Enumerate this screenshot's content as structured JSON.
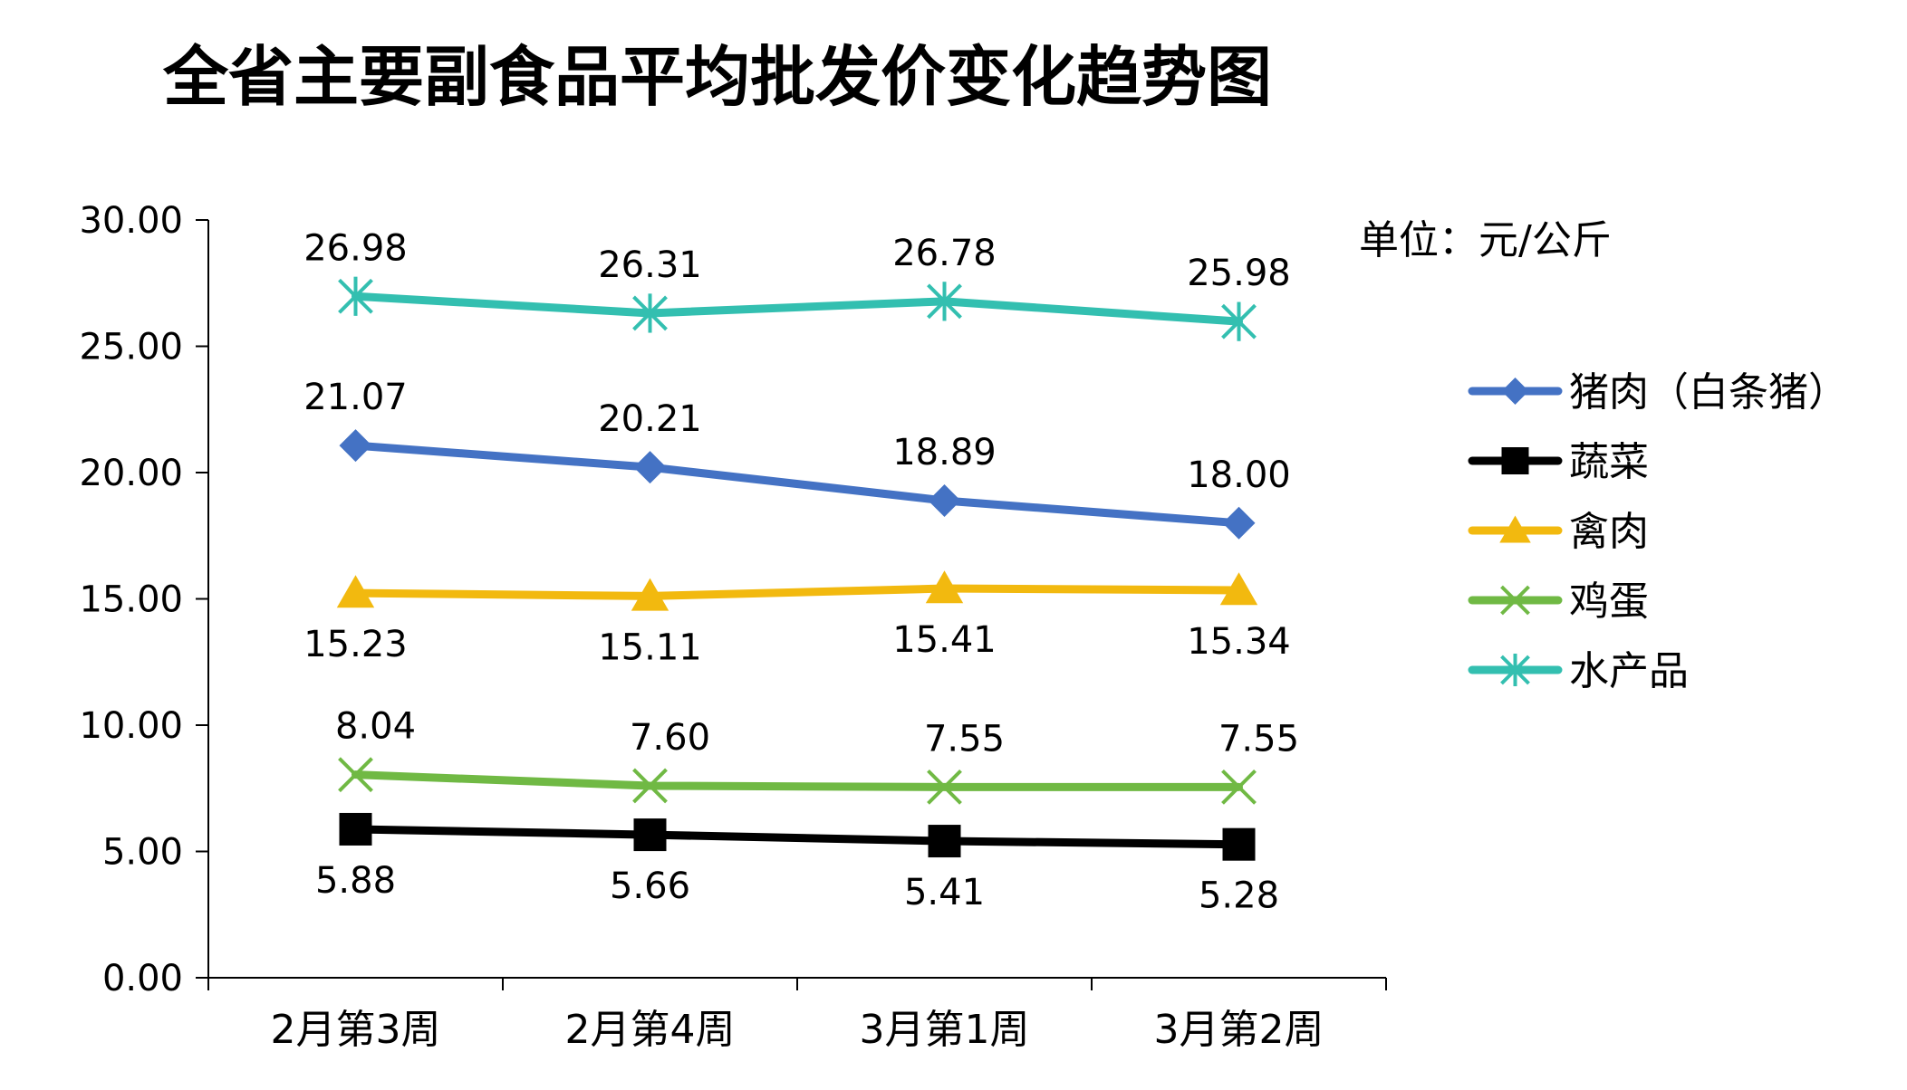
{
  "chart_data": {
    "type": "line",
    "title": "全省主要副食品平均批发价变化趋势图",
    "unit": "单位：元/公斤",
    "xlabel": "",
    "ylabel": "",
    "categories": [
      "2月第3周",
      "2月第4周",
      "3月第1周",
      "3月第2周"
    ],
    "ylim": [
      0,
      30
    ],
    "yticks": [
      "0.00",
      "5.00",
      "10.00",
      "15.00",
      "20.00",
      "25.00",
      "30.00"
    ],
    "grid": false,
    "legend_position": "right",
    "series": [
      {
        "name": "猪肉（白条猪）",
        "values": [
          21.07,
          20.21,
          18.89,
          18.0
        ],
        "labels": [
          "21.07",
          "20.21",
          "18.89",
          "18.00"
        ],
        "color": "#4472C4",
        "marker": "diamond",
        "label_position": "above"
      },
      {
        "name": "蔬菜",
        "values": [
          5.88,
          5.66,
          5.41,
          5.28
        ],
        "labels": [
          "5.88",
          "5.66",
          "5.41",
          "5.28"
        ],
        "color": "#000000",
        "marker": "square",
        "label_position": "below"
      },
      {
        "name": "禽肉",
        "values": [
          15.23,
          15.11,
          15.41,
          15.34
        ],
        "labels": [
          "15.23",
          "15.11",
          "15.41",
          "15.34"
        ],
        "color": "#F2B90F",
        "marker": "triangle",
        "label_position": "below"
      },
      {
        "name": "鸡蛋",
        "values": [
          8.04,
          7.6,
          7.55,
          7.55
        ],
        "labels": [
          "8.04",
          "7.60",
          "7.55",
          "7.55"
        ],
        "color": "#70B944",
        "marker": "x",
        "label_position": "above"
      },
      {
        "name": "水产品",
        "values": [
          26.98,
          26.31,
          26.78,
          25.98
        ],
        "labels": [
          "26.98",
          "26.31",
          "26.78",
          "25.98"
        ],
        "color": "#33BFB0",
        "marker": "asterisk",
        "label_position": "above"
      }
    ]
  }
}
